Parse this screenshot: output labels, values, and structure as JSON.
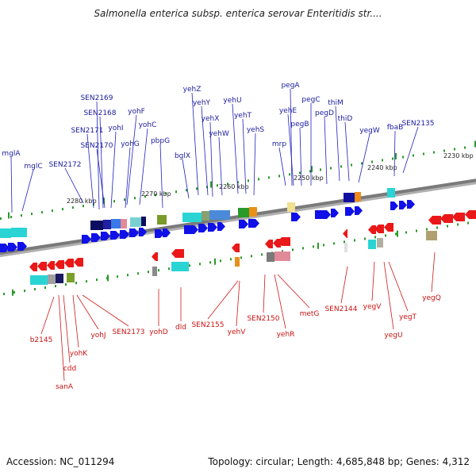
{
  "title": "Salmonella enterica subsp. enterica serovar Enteritidis str....",
  "footer": {
    "accession": "Accession: NC_011294",
    "topology": "Topology: circular; Length: 4,685,848 bp; Genes: 4,312"
  },
  "colors": {
    "forward_gene": "#1a1ae6",
    "reverse_gene": "#e61a1a",
    "forward_label": "#1a1aa0",
    "reverse_label": "#c81414",
    "backbone": "#7a7a7a",
    "tick": "#2a9a2a"
  },
  "scale_labels": [
    "2280 kbp",
    "2270 kbp",
    "2260 kbp",
    "2250 kbp",
    "2240 kbp",
    "2230 kbp"
  ],
  "forward_labels": [
    "mglA",
    "mglC",
    "SEN2172",
    "SEN2171",
    "SEN2169",
    "SEN2168",
    "SEN2170",
    "yohI",
    "yohF",
    "yohG",
    "yohC",
    "pbpG",
    "bglX",
    "yehZ",
    "yehY",
    "yehX",
    "yehW",
    "yehU",
    "yehT",
    "yehS",
    "pegA",
    "yehE",
    "pegB",
    "mrp",
    "pegC",
    "pegD",
    "thiM",
    "thiD",
    "yegW",
    "fbaB",
    "SEN2135"
  ],
  "reverse_labels": [
    "b2145",
    "cdd",
    "yohK",
    "sanA",
    "yohJ",
    "SEN2173",
    "yohD",
    "dld",
    "SEN2155",
    "yehV",
    "SEN2150",
    "yehR",
    "metG",
    "SEN2144",
    "yegV",
    "yegU",
    "yegT",
    "yegQ"
  ]
}
